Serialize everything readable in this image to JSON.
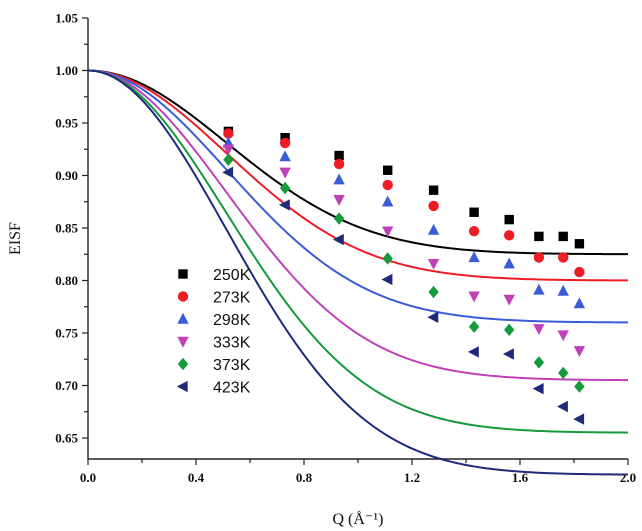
{
  "chart_data": {
    "type": "scatter",
    "xlabel": "Q (Å⁻¹)",
    "ylabel": "EISF",
    "xlim": [
      0.0,
      2.0
    ],
    "ylim": [
      0.63,
      1.05
    ],
    "xticks": [
      "0.0",
      "0.4",
      "0.8",
      "1.2",
      "1.6",
      "2.0"
    ],
    "yticks": [
      "0.65",
      "0.70",
      "0.75",
      "0.80",
      "0.85",
      "0.90",
      "0.95",
      "1.00",
      "1.05"
    ],
    "legend_position": "bottom-left",
    "grid": false,
    "x": [
      0.52,
      0.73,
      0.93,
      1.11,
      1.28,
      1.43,
      1.56,
      1.67,
      1.76,
      1.82
    ],
    "series": [
      {
        "name": "250K",
        "color": "#000000",
        "marker": "square",
        "y": [
          0.942,
          0.936,
          0.919,
          0.905,
          0.886,
          0.865,
          0.858,
          0.842,
          0.842,
          0.835
        ],
        "fit_plateau": 0.825
      },
      {
        "name": "273K",
        "color": "#ee1c25",
        "marker": "circle",
        "y": [
          0.94,
          0.931,
          0.911,
          0.891,
          0.871,
          0.847,
          0.843,
          0.822,
          0.822,
          0.808
        ],
        "fit_plateau": 0.8
      },
      {
        "name": "298K",
        "color": "#3a5cd6",
        "marker": "triangle-up",
        "y": [
          0.931,
          0.918,
          0.896,
          0.875,
          0.848,
          0.822,
          0.816,
          0.791,
          0.79,
          0.778
        ],
        "fit_plateau": 0.76
      },
      {
        "name": "333K",
        "color": "#c040b8",
        "marker": "triangle-down",
        "y": [
          0.925,
          0.903,
          0.877,
          0.847,
          0.816,
          0.785,
          0.782,
          0.754,
          0.748,
          0.733
        ],
        "fit_plateau": 0.705
      },
      {
        "name": "373K",
        "color": "#159a3c",
        "marker": "diamond",
        "y": [
          0.915,
          0.888,
          0.859,
          0.821,
          0.789,
          0.756,
          0.753,
          0.722,
          0.712,
          0.699
        ],
        "fit_plateau": 0.655
      },
      {
        "name": "423K",
        "color": "#1e2a7a",
        "marker": "triangle-left",
        "y": [
          0.903,
          0.872,
          0.839,
          0.801,
          0.765,
          0.732,
          0.73,
          0.697,
          0.68,
          0.668
        ],
        "fit_plateau": 0.615
      }
    ]
  }
}
